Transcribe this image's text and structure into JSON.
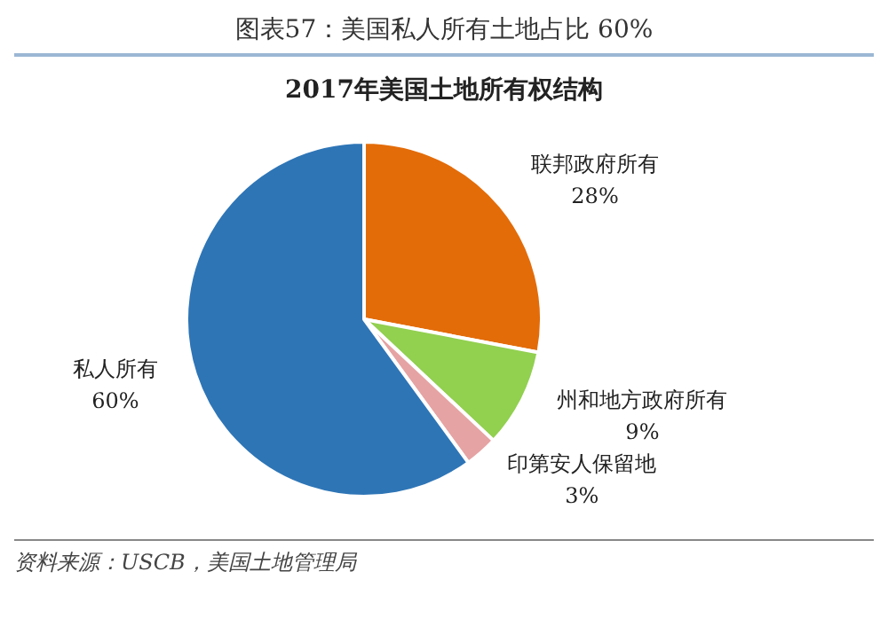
{
  "chart_data": {
    "type": "pie",
    "title": "图表57：美国私人所有土地占比 60%",
    "subtitle": "2017年美国土地所有权结构",
    "categories": [
      "联邦政府所有",
      "州和地方政府所有",
      "印第安人保留地",
      "私人所有"
    ],
    "values": [
      28,
      9,
      3,
      60
    ],
    "value_labels": [
      "28%",
      "9%",
      "3%",
      "60%"
    ],
    "colors": [
      "#e36c09",
      "#92d050",
      "#e6a3a3",
      "#2e75b6"
    ],
    "legend": false,
    "annotations": [
      "资料来源：USCB，美国土地管理局"
    ]
  }
}
